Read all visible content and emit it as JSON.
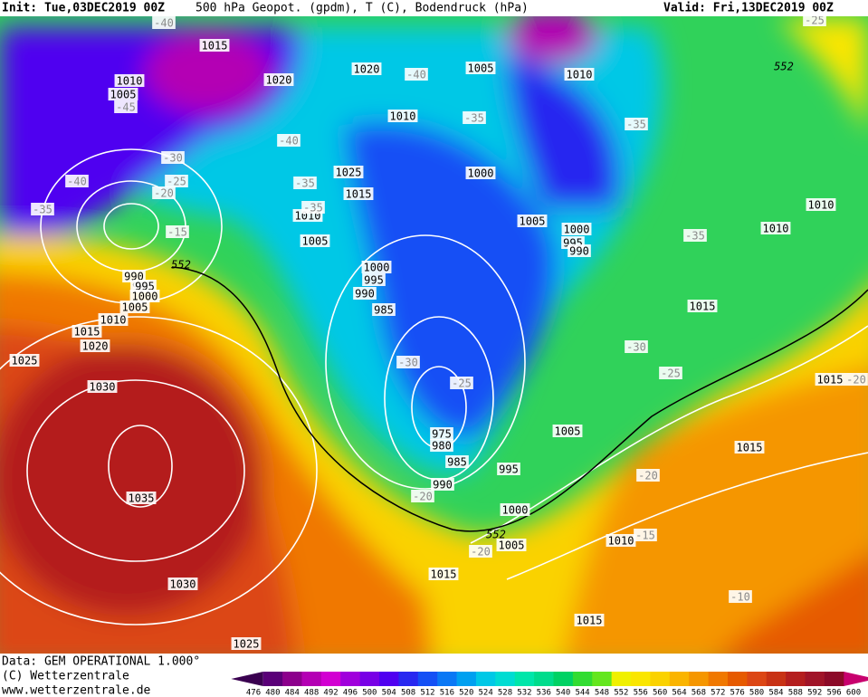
{
  "header": {
    "init": "Init: Tue,03DEC2019 00Z",
    "title": "500 hPa Geopot. (gpdm), T (C), Bodendruck (hPa)",
    "valid": "Valid: Fri,13DEC2019 00Z"
  },
  "map": {
    "isobars": [
      1015,
      1010,
      1005,
      1020,
      1020,
      1005,
      1010,
      1010,
      1025,
      1015,
      1000,
      1005,
      1000,
      995,
      990,
      1010,
      1005,
      1000,
      995,
      990,
      985,
      995,
      990,
      995,
      1000,
      1005,
      1010,
      1015,
      1020,
      1025,
      1030,
      1035,
      1030,
      1025,
      975,
      980,
      985,
      995,
      990,
      1000,
      1005,
      1010,
      1015,
      1015,
      1005,
      1015,
      1015,
      1010,
      1010,
      1015
    ],
    "isotherms": [
      -40,
      -45,
      -40,
      -35,
      -40,
      -35,
      -30,
      -25,
      -20,
      -15,
      -40,
      -35,
      -35,
      -35,
      -35,
      -30,
      -25,
      -30,
      -25,
      -20,
      -20,
      -20,
      -15,
      -10,
      -25,
      -20
    ],
    "geopotential": [
      552,
      552,
      552
    ]
  },
  "footer": {
    "data": "Data: GEM OPERATIONAL 1.000°",
    "copyright": "(C) Wetterzentrale",
    "url": "www.wetterzentrale.de"
  },
  "colorbar": {
    "labels": [
      476,
      480,
      484,
      488,
      492,
      496,
      500,
      504,
      508,
      512,
      516,
      520,
      524,
      528,
      532,
      536,
      540,
      544,
      548,
      552,
      556,
      560,
      564,
      568,
      572,
      576,
      580,
      584,
      588,
      592,
      596,
      600
    ],
    "colors": [
      "#3a0050",
      "#5a0078",
      "#8c008c",
      "#b400b4",
      "#d200d2",
      "#a000dc",
      "#7800e6",
      "#5000f0",
      "#2828f0",
      "#1450f5",
      "#0a78f5",
      "#00a0f0",
      "#00c8e6",
      "#00dcd2",
      "#00e6aa",
      "#00dc8c",
      "#00d264",
      "#32dc32",
      "#64e61e",
      "#f0f000",
      "#fae600",
      "#fad200",
      "#fab400",
      "#f59600",
      "#f07800",
      "#e65a00",
      "#dc4614",
      "#c83214",
      "#b41e1e",
      "#a01428",
      "#8c0a28",
      "#c8006e"
    ]
  }
}
